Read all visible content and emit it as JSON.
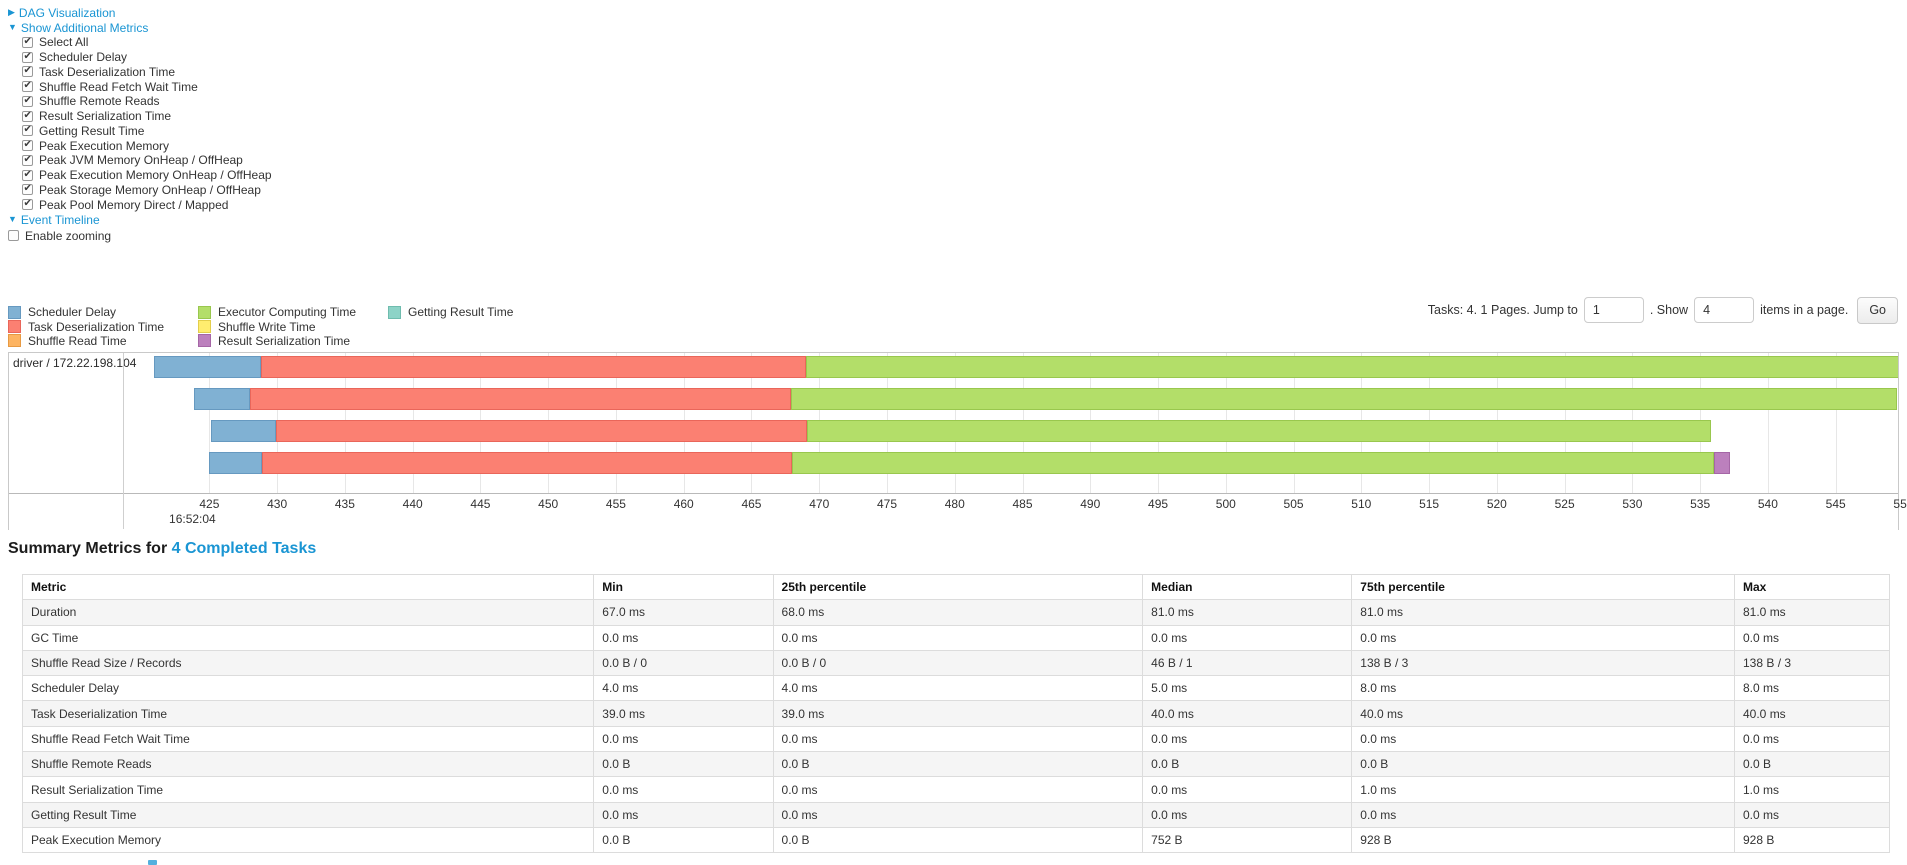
{
  "controls": {
    "dag": {
      "arrow": "▶",
      "label": "DAG Visualization"
    },
    "metrics_toggle": {
      "arrow": "▼",
      "label": "Show Additional Metrics"
    },
    "checkboxes": [
      {
        "label": "Select All",
        "checked": true
      },
      {
        "label": "Scheduler Delay",
        "checked": true
      },
      {
        "label": "Task Deserialization Time",
        "checked": true
      },
      {
        "label": "Shuffle Read Fetch Wait Time",
        "checked": true
      },
      {
        "label": "Shuffle Remote Reads",
        "checked": true
      },
      {
        "label": "Result Serialization Time",
        "checked": true
      },
      {
        "label": "Getting Result Time",
        "checked": true
      },
      {
        "label": "Peak Execution Memory",
        "checked": true
      },
      {
        "label": "Peak JVM Memory OnHeap / OffHeap",
        "checked": true
      },
      {
        "label": "Peak Execution Memory OnHeap / OffHeap",
        "checked": true
      },
      {
        "label": "Peak Storage Memory OnHeap / OffHeap",
        "checked": true
      },
      {
        "label": "Peak Pool Memory Direct / Mapped",
        "checked": true
      }
    ],
    "event_timeline": {
      "arrow": "▼",
      "label": "Event Timeline"
    },
    "enable_zooming": {
      "label": "Enable zooming",
      "checked": false
    }
  },
  "pagination": {
    "tasks_label": "Tasks: 4. 1 Pages. Jump to",
    "jump_value": "1",
    "show_label": ". Show",
    "show_value": "4",
    "items_label": "items in a page.",
    "go_label": "Go"
  },
  "colors": {
    "scheduler_delay": {
      "fill": "#80B1D3",
      "border": "#6699C0"
    },
    "task_deserialization": {
      "fill": "#FB8072",
      "border": "#E9665A"
    },
    "shuffle_read": {
      "fill": "#FDB462",
      "border": "#E79A43"
    },
    "executor_computing": {
      "fill": "#B3DE69",
      "border": "#99C74E"
    },
    "shuffle_write": {
      "fill": "#FFED6F",
      "border": "#E3CE4B"
    },
    "result_serialization": {
      "fill": "#BC80BD",
      "border": "#A566A6"
    },
    "getting_result": {
      "fill": "#8DD3C7",
      "border": "#6FBCAE"
    },
    "link": "#1a95d3"
  },
  "legend": {
    "columns": [
      [
        {
          "key": "scheduler_delay",
          "label": "Scheduler Delay"
        },
        {
          "key": "task_deserialization",
          "label": "Task Deserialization Time"
        },
        {
          "key": "shuffle_read",
          "label": "Shuffle Read Time"
        }
      ],
      [
        {
          "key": "executor_computing",
          "label": "Executor Computing Time"
        },
        {
          "key": "shuffle_write",
          "label": "Shuffle Write Time"
        },
        {
          "key": "result_serialization",
          "label": "Result Serialization Time"
        }
      ],
      [
        {
          "key": "getting_result",
          "label": "Getting Result Time"
        }
      ]
    ]
  },
  "chart_data": {
    "type": "timeline",
    "group_label": "driver / 172.22.198.104",
    "axis": {
      "min": 418.7,
      "max": 549.6,
      "ticks": [
        "425",
        "430",
        "435",
        "440",
        "445",
        "450",
        "455",
        "460",
        "465",
        "470",
        "475",
        "480",
        "485",
        "490",
        "495",
        "500",
        "505",
        "510",
        "515",
        "520",
        "525",
        "530",
        "535",
        "540",
        "545",
        "550"
      ],
      "tick_values": [
        425,
        430,
        435,
        440,
        445,
        450,
        455,
        460,
        465,
        470,
        475,
        480,
        485,
        490,
        495,
        500,
        505,
        510,
        515,
        520,
        525,
        530,
        535,
        540,
        545,
        550
      ],
      "major_label": "16:52:04",
      "major_label_value": 425
    },
    "tasks": [
      {
        "segments": [
          {
            "key": "scheduler_delay",
            "start": 420.9,
            "end": 428.8
          },
          {
            "key": "task_deserialization",
            "start": 428.8,
            "end": 469.0
          },
          {
            "key": "executor_computing",
            "start": 469.0,
            "end": 551.0
          }
        ]
      },
      {
        "segments": [
          {
            "key": "scheduler_delay",
            "start": 423.9,
            "end": 428.0
          },
          {
            "key": "task_deserialization",
            "start": 428.0,
            "end": 467.9
          },
          {
            "key": "executor_computing",
            "start": 467.9,
            "end": 549.5
          }
        ]
      },
      {
        "segments": [
          {
            "key": "scheduler_delay",
            "start": 425.1,
            "end": 429.9
          },
          {
            "key": "task_deserialization",
            "start": 429.9,
            "end": 469.1
          },
          {
            "key": "executor_computing",
            "start": 469.1,
            "end": 535.8
          }
        ]
      },
      {
        "segments": [
          {
            "key": "scheduler_delay",
            "start": 425.0,
            "end": 428.9
          },
          {
            "key": "task_deserialization",
            "start": 428.9,
            "end": 468.0
          },
          {
            "key": "executor_computing",
            "start": 468.0,
            "end": 536.0
          },
          {
            "key": "result_serialization",
            "start": 536.0,
            "end": 537.2
          }
        ]
      }
    ]
  },
  "summary": {
    "title_prefix": "Summary Metrics for ",
    "title_link": "4 Completed Tasks",
    "table": {
      "headers": [
        "Metric",
        "Min",
        "25th percentile",
        "Median",
        "75th percentile",
        "Max"
      ],
      "rows": [
        [
          "Duration",
          "67.0 ms",
          "68.0 ms",
          "81.0 ms",
          "81.0 ms",
          "81.0 ms"
        ],
        [
          "GC Time",
          "0.0 ms",
          "0.0 ms",
          "0.0 ms",
          "0.0 ms",
          "0.0 ms"
        ],
        [
          "Shuffle Read Size / Records",
          "0.0 B / 0",
          "0.0 B / 0",
          "46 B / 1",
          "138 B / 3",
          "138 B / 3"
        ],
        [
          "Scheduler Delay",
          "4.0 ms",
          "4.0 ms",
          "5.0 ms",
          "8.0 ms",
          "8.0 ms"
        ],
        [
          "Task Deserialization Time",
          "39.0 ms",
          "39.0 ms",
          "40.0 ms",
          "40.0 ms",
          "40.0 ms"
        ],
        [
          "Shuffle Read Fetch Wait Time",
          "0.0 ms",
          "0.0 ms",
          "0.0 ms",
          "0.0 ms",
          "0.0 ms"
        ],
        [
          "Shuffle Remote Reads",
          "0.0 B",
          "0.0 B",
          "0.0 B",
          "0.0 B",
          "0.0 B"
        ],
        [
          "Result Serialization Time",
          "0.0 ms",
          "0.0 ms",
          "0.0 ms",
          "1.0 ms",
          "1.0 ms"
        ],
        [
          "Getting Result Time",
          "0.0 ms",
          "0.0 ms",
          "0.0 ms",
          "0.0 ms",
          "0.0 ms"
        ],
        [
          "Peak Execution Memory",
          "0.0 B",
          "0.0 B",
          "752 B",
          "928 B",
          "928 B"
        ]
      ]
    }
  }
}
